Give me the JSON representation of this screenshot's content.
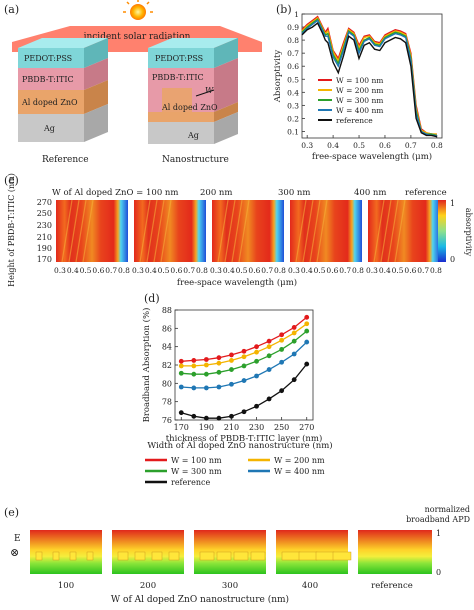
{
  "panels": {
    "a": "(a)",
    "b": "(b)",
    "c": "(c)",
    "d": "(d)",
    "e": "(e)"
  },
  "panel_a": {
    "radiation_label": "incident solar radiation",
    "layers": [
      "PEDOT:PSS",
      "PBDB-T:ITIC",
      "Al doped ZnO",
      "Ag"
    ],
    "w_label": "W",
    "left_caption": "Reference",
    "right_caption": "Nanostructure",
    "colors": {
      "pedot": "#7fd6d8",
      "pbdb": "#e79aa8",
      "azo": "#e9a46a",
      "ag": "#c8c8c8",
      "sun": "#ffcc00"
    }
  },
  "panel_c": {
    "header_prefix": "W of Al doped ZnO = 100 nm",
    "headers": [
      "200 nm",
      "300 nm",
      "400 nm",
      "reference"
    ],
    "ylabel": "Height of PBDB-T:ITIC (nm)",
    "yticks": [
      "270",
      "250",
      "230",
      "210",
      "190",
      "170"
    ],
    "xticks": [
      "0.3",
      "0.4",
      "0.5",
      "0.6",
      "0.7",
      "0.8"
    ],
    "xlabel": "free-space wavelength (μm)",
    "colorbar_label": "absorptivity",
    "colorbar_ticks": [
      "1",
      "0"
    ]
  },
  "panel_e": {
    "labels": [
      "100",
      "200",
      "300",
      "400",
      "reference"
    ],
    "xlabel": "W of Al doped ZnO nanostructure (nm)",
    "colorbar_label_1": "normalized",
    "colorbar_label_2": "broadband APD",
    "colorbar_ticks": [
      "1",
      "0"
    ],
    "axis_symbol": "⊗",
    "axis_letter": "E"
  },
  "chart_data": [
    {
      "panel": "b",
      "type": "line",
      "xlabel": "free-space wavelength (μm)",
      "ylabel": "Absorptivity",
      "xlim": [
        0.28,
        0.82
      ],
      "ylim": [
        0.05,
        1.0
      ],
      "xticks": [
        0.3,
        0.4,
        0.5,
        0.6,
        0.7,
        0.8
      ],
      "yticks": [
        0.1,
        0.2,
        0.3,
        0.4,
        0.5,
        0.6,
        0.7,
        0.8,
        0.9,
        1.0
      ],
      "legend": "center-right",
      "series": [
        {
          "name": "W = 100 nm",
          "color": "#e31a1c",
          "x": [
            0.28,
            0.3,
            0.32,
            0.34,
            0.36,
            0.37,
            0.38,
            0.4,
            0.42,
            0.44,
            0.46,
            0.48,
            0.5,
            0.52,
            0.54,
            0.56,
            0.58,
            0.6,
            0.62,
            0.64,
            0.66,
            0.68,
            0.7,
            0.72,
            0.74,
            0.76,
            0.78,
            0.8
          ],
          "y": [
            0.88,
            0.92,
            0.95,
            0.98,
            0.9,
            0.86,
            0.89,
            0.72,
            0.66,
            0.78,
            0.89,
            0.86,
            0.76,
            0.83,
            0.84,
            0.79,
            0.78,
            0.84,
            0.86,
            0.88,
            0.87,
            0.85,
            0.7,
            0.3,
            0.12,
            0.09,
            0.08,
            0.08
          ]
        },
        {
          "name": "W = 200 nm",
          "color": "#f4b400",
          "x": [
            0.28,
            0.3,
            0.32,
            0.34,
            0.36,
            0.37,
            0.38,
            0.4,
            0.42,
            0.44,
            0.46,
            0.48,
            0.5,
            0.52,
            0.54,
            0.56,
            0.58,
            0.6,
            0.62,
            0.64,
            0.66,
            0.68,
            0.7,
            0.72,
            0.74,
            0.76,
            0.78,
            0.8
          ],
          "y": [
            0.87,
            0.91,
            0.94,
            0.97,
            0.89,
            0.85,
            0.87,
            0.71,
            0.64,
            0.76,
            0.88,
            0.85,
            0.74,
            0.82,
            0.83,
            0.78,
            0.77,
            0.83,
            0.85,
            0.87,
            0.86,
            0.84,
            0.68,
            0.28,
            0.11,
            0.09,
            0.08,
            0.08
          ]
        },
        {
          "name": "W = 300 nm",
          "color": "#2ca02c",
          "x": [
            0.28,
            0.3,
            0.32,
            0.34,
            0.36,
            0.37,
            0.38,
            0.4,
            0.42,
            0.44,
            0.46,
            0.48,
            0.5,
            0.52,
            0.54,
            0.56,
            0.58,
            0.6,
            0.62,
            0.64,
            0.66,
            0.68,
            0.7,
            0.72,
            0.74,
            0.76,
            0.78,
            0.8
          ],
          "y": [
            0.86,
            0.9,
            0.93,
            0.96,
            0.88,
            0.84,
            0.85,
            0.69,
            0.62,
            0.74,
            0.87,
            0.84,
            0.72,
            0.8,
            0.82,
            0.77,
            0.76,
            0.82,
            0.84,
            0.86,
            0.85,
            0.83,
            0.66,
            0.26,
            0.1,
            0.08,
            0.08,
            0.07
          ]
        },
        {
          "name": "W = 400 nm",
          "color": "#1f77b4",
          "x": [
            0.28,
            0.3,
            0.32,
            0.34,
            0.36,
            0.37,
            0.38,
            0.4,
            0.42,
            0.44,
            0.46,
            0.48,
            0.5,
            0.52,
            0.54,
            0.56,
            0.58,
            0.6,
            0.62,
            0.64,
            0.66,
            0.68,
            0.7,
            0.72,
            0.74,
            0.76,
            0.78,
            0.8
          ],
          "y": [
            0.85,
            0.89,
            0.92,
            0.95,
            0.87,
            0.83,
            0.83,
            0.67,
            0.6,
            0.72,
            0.86,
            0.83,
            0.7,
            0.79,
            0.81,
            0.76,
            0.75,
            0.81,
            0.83,
            0.85,
            0.84,
            0.82,
            0.64,
            0.24,
            0.1,
            0.08,
            0.07,
            0.07
          ]
        },
        {
          "name": "reference",
          "color": "#111111",
          "x": [
            0.28,
            0.3,
            0.32,
            0.34,
            0.36,
            0.37,
            0.38,
            0.4,
            0.42,
            0.44,
            0.46,
            0.48,
            0.5,
            0.52,
            0.54,
            0.56,
            0.58,
            0.6,
            0.62,
            0.64,
            0.66,
            0.68,
            0.7,
            0.72,
            0.74,
            0.76,
            0.78,
            0.8
          ],
          "y": [
            0.84,
            0.88,
            0.9,
            0.93,
            0.85,
            0.8,
            0.78,
            0.63,
            0.55,
            0.68,
            0.83,
            0.8,
            0.66,
            0.76,
            0.78,
            0.73,
            0.72,
            0.78,
            0.8,
            0.82,
            0.81,
            0.78,
            0.6,
            0.2,
            0.09,
            0.07,
            0.07,
            0.06
          ]
        }
      ]
    },
    {
      "panel": "d",
      "type": "line",
      "xlabel": "thickness of PBDB-T:ITIC  layer (nm)",
      "ylabel": "Broadband Absorption (%)",
      "xlim": [
        165,
        275
      ],
      "ylim": [
        76,
        88
      ],
      "xticks": [
        170,
        190,
        210,
        230,
        250,
        270
      ],
      "yticks": [
        76,
        78,
        80,
        82,
        84,
        86,
        88
      ],
      "legend_title": "Width of Al doped ZnO nanostructure (nm)",
      "legend": "bottom",
      "x": [
        170,
        180,
        190,
        200,
        210,
        220,
        230,
        240,
        250,
        260,
        270
      ],
      "series": [
        {
          "name": "W = 100 nm",
          "color": "#e31a1c",
          "values": [
            82.4,
            82.5,
            82.6,
            82.8,
            83.1,
            83.5,
            84.0,
            84.6,
            85.3,
            86.1,
            87.2
          ]
        },
        {
          "name": "W = 200 nm",
          "color": "#f4b400",
          "values": [
            81.9,
            81.9,
            82.0,
            82.2,
            82.5,
            82.9,
            83.4,
            84.0,
            84.7,
            85.5,
            86.5
          ]
        },
        {
          "name": "W = 300 nm",
          "color": "#2ca02c",
          "values": [
            81.1,
            81.0,
            81.0,
            81.2,
            81.5,
            81.9,
            82.4,
            83.0,
            83.7,
            84.6,
            85.7
          ]
        },
        {
          "name": "W = 400 nm",
          "color": "#1f77b4",
          "values": [
            79.6,
            79.5,
            79.5,
            79.6,
            79.9,
            80.3,
            80.8,
            81.5,
            82.3,
            83.2,
            84.5
          ]
        },
        {
          "name": "reference",
          "color": "#111111",
          "values": [
            76.8,
            76.4,
            76.2,
            76.2,
            76.4,
            76.9,
            77.5,
            78.3,
            79.2,
            80.4,
            82.1
          ]
        }
      ]
    }
  ]
}
